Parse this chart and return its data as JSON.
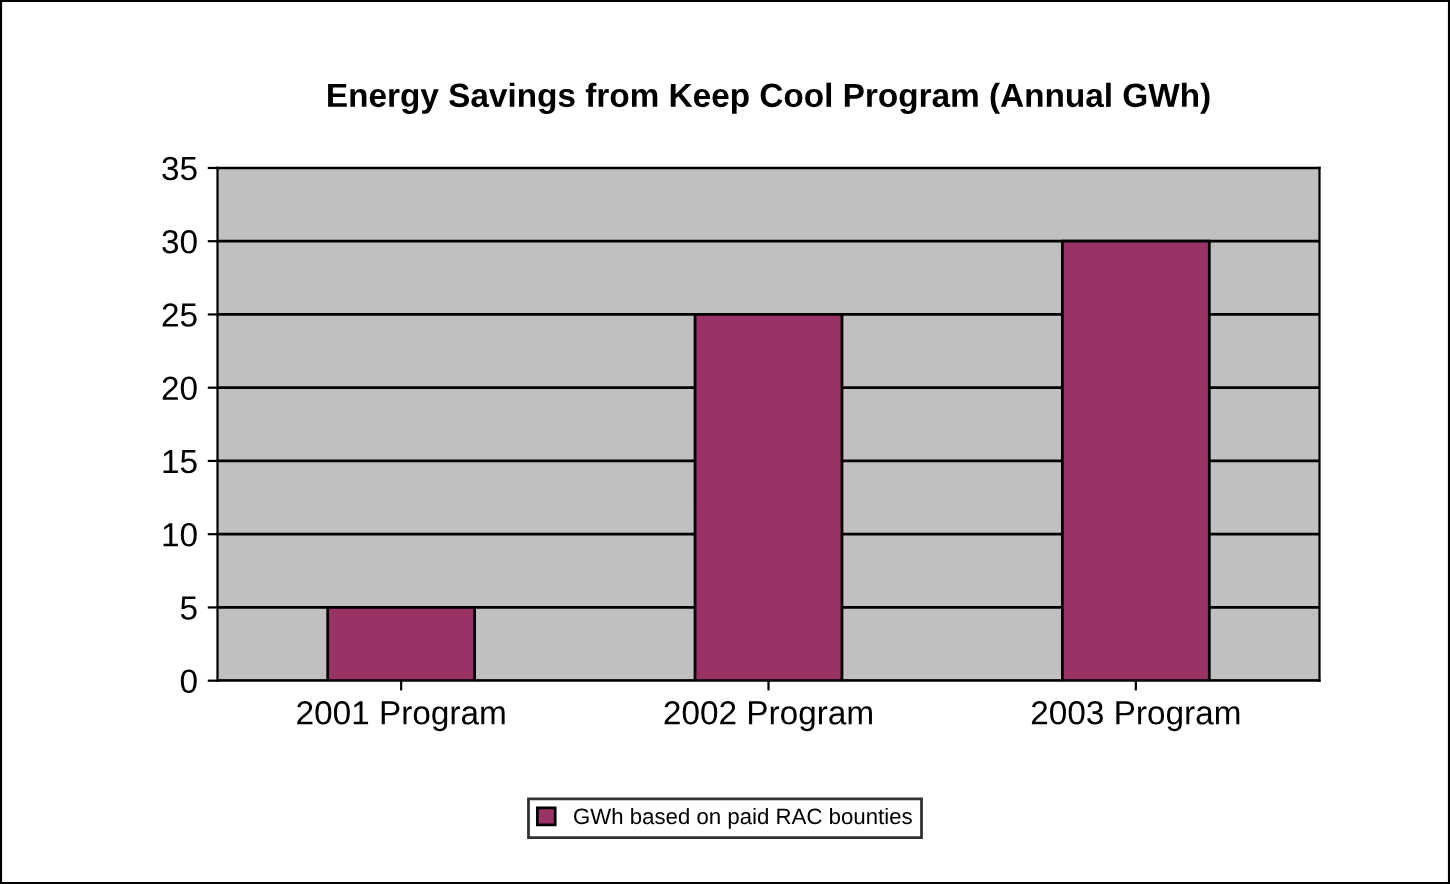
{
  "chart_data": {
    "type": "bar",
    "title": "Energy Savings from Keep Cool Program (Annual GWh)",
    "categories": [
      "2001 Program",
      "2002 Program",
      "2003 Program"
    ],
    "series": [
      {
        "name": "GWh based on paid RAC bounties",
        "color": "#993366",
        "values": [
          5,
          25,
          30
        ]
      }
    ],
    "ylim": [
      0,
      35
    ],
    "yticks": [
      0,
      5,
      10,
      15,
      20,
      25,
      30,
      35
    ],
    "grid": "y",
    "legend": "bottom"
  }
}
